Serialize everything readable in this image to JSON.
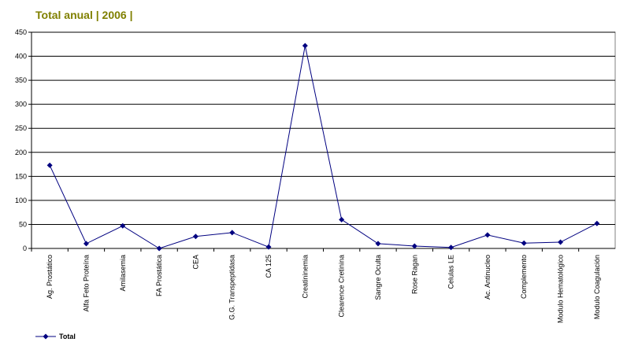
{
  "chart_data": {
    "type": "line",
    "title": "Total anual | 2006 |",
    "categories": [
      "Ag. Prostático",
      "Alfa Feto Proteína",
      "Amilasemia",
      "FA Prostática",
      "CEA",
      "G.G. Transpeptidasa",
      "CA 125",
      "Creatininemia",
      "Clearence Cretinina",
      "Sangre Oculta",
      "Rose Ragan",
      "Celulas LE",
      "Ac. Antinucleo",
      "Complemento",
      "Modulo Hematológico",
      "Modulo Coagulación"
    ],
    "series": [
      {
        "name": "Total",
        "color": "#000080",
        "values": [
          173,
          10,
          47,
          0,
          25,
          33,
          3,
          422,
          60,
          10,
          5,
          2,
          28,
          11,
          13,
          52
        ]
      }
    ],
    "ylim": [
      0,
      450
    ],
    "yticks": [
      0,
      50,
      100,
      150,
      200,
      250,
      300,
      350,
      400,
      450
    ],
    "grid": true
  }
}
